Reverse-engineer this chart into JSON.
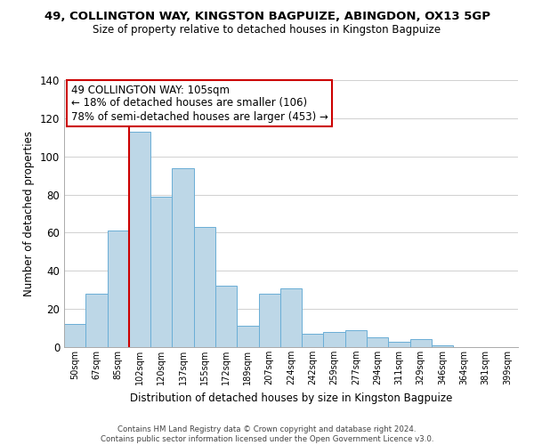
{
  "title": "49, COLLINGTON WAY, KINGSTON BAGPUIZE, ABINGDON, OX13 5GP",
  "subtitle": "Size of property relative to detached houses in Kingston Bagpuize",
  "xlabel": "Distribution of detached houses by size in Kingston Bagpuize",
  "ylabel": "Number of detached properties",
  "footer_line1": "Contains HM Land Registry data © Crown copyright and database right 2024.",
  "footer_line2": "Contains public sector information licensed under the Open Government Licence v3.0.",
  "bar_labels": [
    "50sqm",
    "67sqm",
    "85sqm",
    "102sqm",
    "120sqm",
    "137sqm",
    "155sqm",
    "172sqm",
    "189sqm",
    "207sqm",
    "224sqm",
    "242sqm",
    "259sqm",
    "277sqm",
    "294sqm",
    "311sqm",
    "329sqm",
    "346sqm",
    "364sqm",
    "381sqm",
    "399sqm"
  ],
  "bar_values": [
    12,
    28,
    61,
    113,
    79,
    94,
    63,
    32,
    11,
    28,
    31,
    7,
    8,
    9,
    5,
    3,
    4,
    1,
    0,
    0,
    0
  ],
  "bar_color": "#bdd7e7",
  "bar_edge_color": "#6aaed6",
  "vline_index": 3,
  "vline_color": "#cc0000",
  "annotation_text": "49 COLLINGTON WAY: 105sqm\n← 18% of detached houses are smaller (106)\n78% of semi-detached houses are larger (453) →",
  "annotation_box_color": "#ffffff",
  "annotation_box_edge": "#cc0000",
  "ylim": [
    0,
    140
  ],
  "yticks": [
    0,
    20,
    40,
    60,
    80,
    100,
    120,
    140
  ],
  "background_color": "#ffffff",
  "grid_color": "#d0d0d0"
}
